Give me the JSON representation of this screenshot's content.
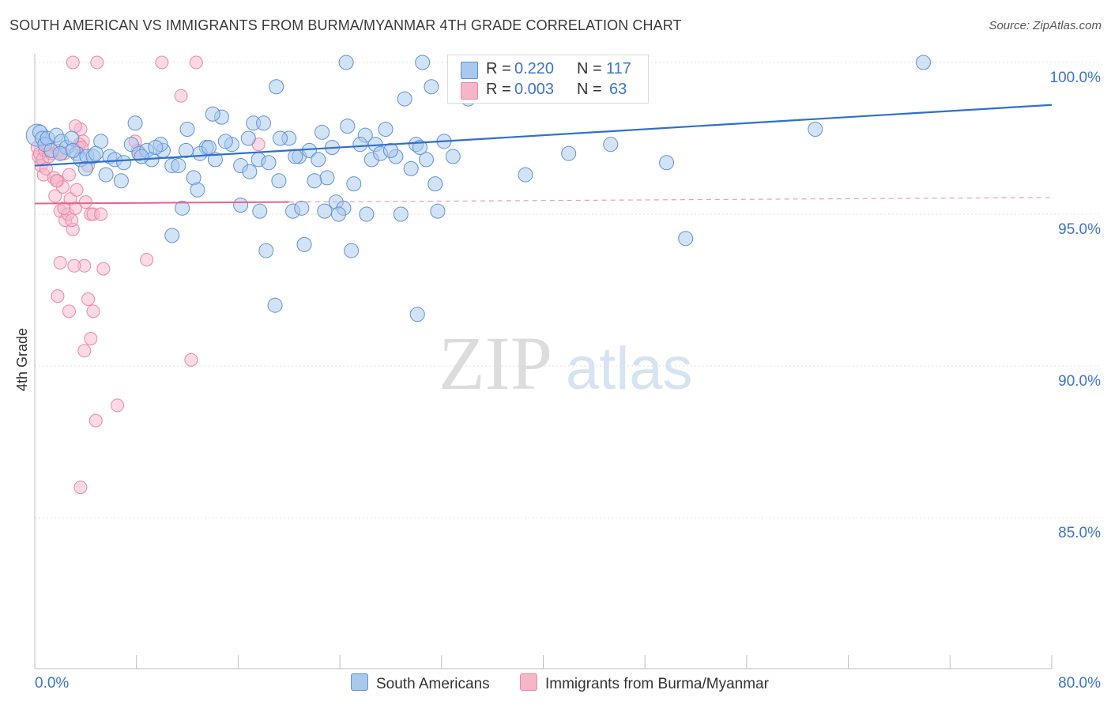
{
  "header": {
    "title": "SOUTH AMERICAN VS IMMIGRANTS FROM BURMA/MYANMAR 4TH GRADE CORRELATION CHART",
    "source": "Source: ZipAtlas.com"
  },
  "legend": {
    "r_label": "R =",
    "n_label": "N =",
    "series1": {
      "r": "0.220",
      "n": "117"
    },
    "series2": {
      "r": "0.003",
      "n": "63"
    }
  },
  "watermark": {
    "zip": "ZIP",
    "atlas": "atlas"
  },
  "colors": {
    "blue_fill": "#a8c8ee",
    "blue_stroke": "#5d93d6",
    "blue_line": "#2f6fcf",
    "pink_fill": "#f6b6c9",
    "pink_stroke": "#ec86a6",
    "pink_line": "#e8628c",
    "tick_label": "#3d74c8",
    "grid": "#dedede"
  },
  "chart_data": {
    "type": "scatter",
    "xlabel": "",
    "ylabel": "4th Grade",
    "xlim": [
      0,
      80
    ],
    "ylim": [
      80.0,
      100.5
    ],
    "x_tick_labels": [
      "0.0%",
      "80.0%"
    ],
    "y_ticks": [
      85,
      90,
      95,
      100
    ],
    "y_tick_labels": [
      "85.0%",
      "90.0%",
      "95.0%",
      "100.0%"
    ],
    "grid": true,
    "legend_position": "top-center",
    "series": [
      {
        "name": "South Americans",
        "color": "#5d93d6",
        "r": 0.22,
        "n": 117,
        "trend": {
          "x0": 0,
          "y0": 96.6,
          "x1": 80,
          "y1": 98.6
        },
        "points": [
          [
            0.2,
            97.6
          ],
          [
            0.4,
            97.7
          ],
          [
            0.6,
            97.5
          ],
          [
            0.8,
            97.3
          ],
          [
            1.0,
            97.5
          ],
          [
            1.3,
            97.1
          ],
          [
            1.7,
            97.6
          ],
          [
            2.1,
            97.4
          ],
          [
            2.5,
            97.2
          ],
          [
            2.9,
            97.5
          ],
          [
            3.3,
            97.0
          ],
          [
            3.6,
            96.8
          ],
          [
            4.1,
            96.9
          ],
          [
            4.6,
            96.9
          ],
          [
            5.2,
            97.4
          ],
          [
            5.9,
            96.9
          ],
          [
            6.3,
            96.8
          ],
          [
            7.0,
            96.7
          ],
          [
            7.6,
            97.3
          ],
          [
            8.2,
            97.0
          ],
          [
            8.8,
            97.1
          ],
          [
            9.2,
            96.8
          ],
          [
            10.1,
            97.1
          ],
          [
            10.8,
            96.6
          ],
          [
            11.9,
            97.1
          ],
          [
            12.5,
            96.2
          ],
          [
            13.5,
            97.2
          ],
          [
            14.2,
            96.8
          ],
          [
            14.7,
            98.2
          ],
          [
            15.5,
            97.3
          ],
          [
            16.2,
            96.6
          ],
          [
            16.9,
            96.4
          ],
          [
            17.6,
            96.8
          ],
          [
            18.4,
            96.7
          ],
          [
            19.2,
            96.1
          ],
          [
            20.0,
            97.5
          ],
          [
            20.8,
            96.9
          ],
          [
            21.6,
            97.1
          ],
          [
            22.3,
            96.8
          ],
          [
            23.0,
            96.2
          ],
          [
            23.7,
            95.4
          ],
          [
            24.3,
            95.2
          ],
          [
            25.1,
            96.0
          ],
          [
            26.0,
            97.6
          ],
          [
            26.8,
            97.3
          ],
          [
            27.6,
            97.8
          ],
          [
            28.4,
            96.9
          ],
          [
            29.1,
            98.8
          ],
          [
            30.0,
            97.3
          ],
          [
            30.8,
            96.8
          ],
          [
            31.5,
            96.0
          ],
          [
            32.2,
            97.4
          ],
          [
            32.9,
            96.9
          ],
          [
            33.7,
            99.4
          ],
          [
            34.6,
            99.8
          ],
          [
            35.5,
            98.9
          ],
          [
            36.4,
            99.7
          ],
          [
            2.0,
            97.0
          ],
          [
            5.6,
            96.3
          ],
          [
            7.9,
            98.0
          ],
          [
            9.9,
            97.3
          ],
          [
            11.3,
            96.6
          ],
          [
            12.0,
            97.8
          ],
          [
            13.0,
            97.0
          ],
          [
            15.0,
            97.4
          ],
          [
            16.8,
            97.5
          ],
          [
            17.2,
            98.0
          ],
          [
            18.0,
            98.0
          ],
          [
            20.5,
            96.9
          ],
          [
            22.0,
            96.1
          ],
          [
            23.4,
            97.2
          ],
          [
            24.6,
            97.9
          ],
          [
            25.6,
            97.3
          ],
          [
            26.5,
            96.8
          ],
          [
            27.2,
            97.0
          ],
          [
            28.0,
            97.1
          ],
          [
            29.6,
            96.5
          ],
          [
            30.3,
            97.2
          ],
          [
            31.2,
            99.2
          ],
          [
            19.0,
            99.2
          ],
          [
            24.5,
            100.0
          ],
          [
            30.5,
            100.0
          ],
          [
            37.0,
            99.0
          ],
          [
            38.0,
            99.5
          ],
          [
            38.5,
            99.2
          ],
          [
            3.0,
            97.1
          ],
          [
            4.8,
            97.0
          ],
          [
            6.8,
            96.1
          ],
          [
            9.5,
            97.2
          ],
          [
            12.8,
            95.8
          ],
          [
            16.2,
            95.3
          ],
          [
            17.7,
            95.1
          ],
          [
            20.3,
            95.1
          ],
          [
            21.0,
            95.2
          ],
          [
            22.8,
            95.1
          ],
          [
            23.9,
            95.0
          ],
          [
            26.1,
            95.0
          ],
          [
            28.8,
            95.0
          ],
          [
            31.7,
            95.1
          ],
          [
            11.6,
            95.2
          ],
          [
            10.8,
            94.3
          ],
          [
            18.2,
            93.8
          ],
          [
            21.2,
            94.0
          ],
          [
            24.9,
            93.8
          ],
          [
            18.9,
            92.0
          ],
          [
            30.1,
            91.7
          ],
          [
            38.6,
            96.3
          ],
          [
            42.0,
            97.0
          ],
          [
            45.3,
            97.3
          ],
          [
            49.7,
            96.7
          ],
          [
            51.2,
            94.2
          ],
          [
            61.4,
            97.8
          ],
          [
            69.9,
            100.0
          ],
          [
            14.0,
            98.3
          ],
          [
            34.1,
            98.8
          ],
          [
            8.4,
            96.9
          ],
          [
            22.6,
            97.7
          ],
          [
            35.9,
            99.1
          ],
          [
            19.3,
            97.5
          ],
          [
            13.7,
            97.2
          ],
          [
            4.0,
            96.5
          ]
        ]
      },
      {
        "name": "Immigrants from Burma/Myanmar",
        "color": "#ec86a6",
        "r": 0.003,
        "n": 63,
        "trend": {
          "x0": 0,
          "y0": 95.35,
          "x1": 80,
          "y1": 95.55
        },
        "trend_solid_until_x": 20,
        "points": [
          [
            0.2,
            97.2
          ],
          [
            0.3,
            96.9
          ],
          [
            0.4,
            97.0
          ],
          [
            0.5,
            96.6
          ],
          [
            0.6,
            96.8
          ],
          [
            0.7,
            96.3
          ],
          [
            0.8,
            97.1
          ],
          [
            0.9,
            96.5
          ],
          [
            1.1,
            96.9
          ],
          [
            1.3,
            97.0
          ],
          [
            1.5,
            96.2
          ],
          [
            1.6,
            95.6
          ],
          [
            1.8,
            96.1
          ],
          [
            2.0,
            95.1
          ],
          [
            2.2,
            95.9
          ],
          [
            2.4,
            94.8
          ],
          [
            2.6,
            95.0
          ],
          [
            2.8,
            95.5
          ],
          [
            3.0,
            94.5
          ],
          [
            3.2,
            95.2
          ],
          [
            3.4,
            97.2
          ],
          [
            3.6,
            97.8
          ],
          [
            3.8,
            97.4
          ],
          [
            4.0,
            95.4
          ],
          [
            4.2,
            96.6
          ],
          [
            4.4,
            95.0
          ],
          [
            1.9,
            97.1
          ],
          [
            2.3,
            97.0
          ],
          [
            2.7,
            96.3
          ],
          [
            3.3,
            95.8
          ],
          [
            2.9,
            94.8
          ],
          [
            3.5,
            97.3
          ],
          [
            1.7,
            96.1
          ],
          [
            2.1,
            97.0
          ],
          [
            4.6,
            95.0
          ],
          [
            5.2,
            95.0
          ],
          [
            3.9,
            93.3
          ],
          [
            2.0,
            93.4
          ],
          [
            3.1,
            93.3
          ],
          [
            5.4,
            93.2
          ],
          [
            8.8,
            93.5
          ],
          [
            1.8,
            92.3
          ],
          [
            2.7,
            91.8
          ],
          [
            4.2,
            92.2
          ],
          [
            4.6,
            91.8
          ],
          [
            4.4,
            90.9
          ],
          [
            3.9,
            90.5
          ],
          [
            12.3,
            90.2
          ],
          [
            6.5,
            88.7
          ],
          [
            4.8,
            88.2
          ],
          [
            3.6,
            86.0
          ],
          [
            3.0,
            100.0
          ],
          [
            4.9,
            100.0
          ],
          [
            10.0,
            100.0
          ],
          [
            12.7,
            100.0
          ],
          [
            11.5,
            98.9
          ],
          [
            7.9,
            97.4
          ],
          [
            8.1,
            97.1
          ],
          [
            17.6,
            97.3
          ],
          [
            3.7,
            97.2
          ],
          [
            1.0,
            97.3
          ],
          [
            3.2,
            97.9
          ],
          [
            2.3,
            95.2
          ]
        ]
      }
    ]
  }
}
